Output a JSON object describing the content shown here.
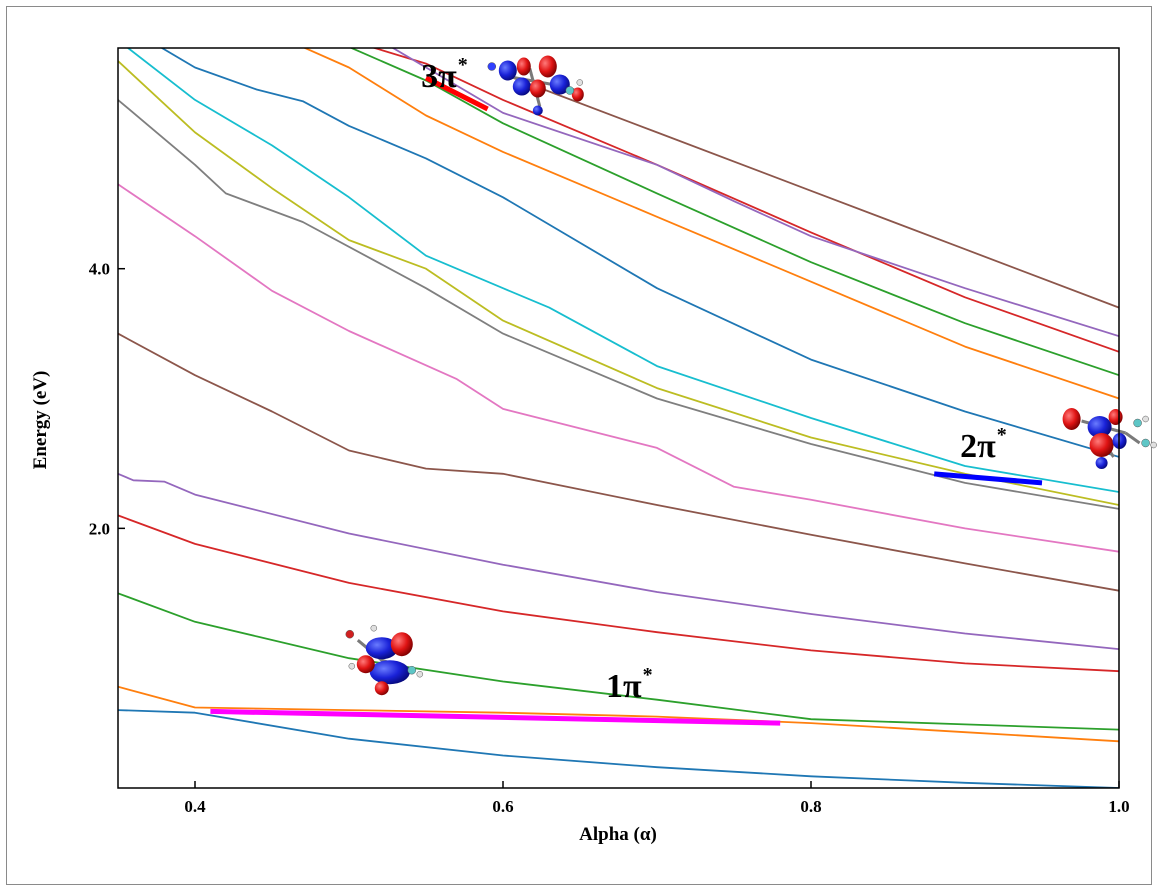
{
  "chart_data": {
    "type": "line",
    "xlabel": "Alpha (α)",
    "ylabel": "Energy (eV)",
    "xlim": [
      0.35,
      1.0
    ],
    "ylim": [
      0.0,
      5.7
    ],
    "x_ticks": [
      0.4,
      0.6,
      0.8,
      1.0
    ],
    "y_ticks": [
      2.0,
      4.0
    ],
    "x_tick_labels": [
      "0.4",
      "0.6",
      "0.8",
      "1.0"
    ],
    "y_tick_labels": [
      "2.0",
      "4.0"
    ],
    "grid": false,
    "legend": "none",
    "series": [
      {
        "color": "#1f77b4",
        "points": [
          [
            0.35,
            0.6
          ],
          [
            0.4,
            0.58
          ],
          [
            0.5,
            0.38
          ],
          [
            0.6,
            0.25
          ],
          [
            0.7,
            0.16
          ],
          [
            0.8,
            0.09
          ],
          [
            0.9,
            0.04
          ],
          [
            1.0,
            0.0
          ]
        ]
      },
      {
        "color": "#ff7f0e",
        "points": [
          [
            0.35,
            0.78
          ],
          [
            0.4,
            0.62
          ],
          [
            0.5,
            0.6
          ],
          [
            0.6,
            0.58
          ],
          [
            0.7,
            0.55
          ],
          [
            0.8,
            0.5
          ],
          [
            0.9,
            0.43
          ],
          [
            1.0,
            0.36
          ]
        ]
      },
      {
        "color": "#2ca02c",
        "points": [
          [
            0.35,
            1.5
          ],
          [
            0.4,
            1.28
          ],
          [
            0.5,
            1.0
          ],
          [
            0.6,
            0.82
          ],
          [
            0.7,
            0.68
          ],
          [
            0.8,
            0.53
          ],
          [
            0.9,
            0.49
          ],
          [
            1.0,
            0.45
          ]
        ]
      },
      {
        "color": "#d62728",
        "points": [
          [
            0.35,
            2.1
          ],
          [
            0.4,
            1.88
          ],
          [
            0.5,
            1.58
          ],
          [
            0.6,
            1.36
          ],
          [
            0.7,
            1.2
          ],
          [
            0.8,
            1.06
          ],
          [
            0.9,
            0.96
          ],
          [
            1.0,
            0.9
          ]
        ]
      },
      {
        "color": "#9467bd",
        "points": [
          [
            0.35,
            2.42
          ],
          [
            0.36,
            2.37
          ],
          [
            0.38,
            2.36
          ],
          [
            0.4,
            2.26
          ],
          [
            0.5,
            1.96
          ],
          [
            0.6,
            1.72
          ],
          [
            0.7,
            1.51
          ],
          [
            0.8,
            1.34
          ],
          [
            0.9,
            1.19
          ],
          [
            1.0,
            1.07
          ]
        ]
      },
      {
        "color": "#8c564b",
        "points": [
          [
            0.35,
            3.5
          ],
          [
            0.4,
            3.18
          ],
          [
            0.45,
            2.9
          ],
          [
            0.5,
            2.6
          ],
          [
            0.55,
            2.46
          ],
          [
            0.6,
            2.42
          ],
          [
            0.7,
            2.18
          ],
          [
            0.8,
            1.95
          ],
          [
            0.9,
            1.73
          ],
          [
            1.0,
            1.52
          ]
        ]
      },
      {
        "color": "#e377c2",
        "points": [
          [
            0.35,
            4.65
          ],
          [
            0.4,
            4.25
          ],
          [
            0.45,
            3.83
          ],
          [
            0.5,
            3.52
          ],
          [
            0.57,
            3.15
          ],
          [
            0.6,
            2.92
          ],
          [
            0.7,
            2.62
          ],
          [
            0.75,
            2.32
          ],
          [
            0.8,
            2.22
          ],
          [
            0.9,
            2.0
          ],
          [
            1.0,
            1.82
          ]
        ]
      },
      {
        "color": "#7f7f7f",
        "points": [
          [
            0.35,
            5.3
          ],
          [
            0.4,
            4.8
          ],
          [
            0.42,
            4.58
          ],
          [
            0.47,
            4.36
          ],
          [
            0.55,
            3.85
          ],
          [
            0.6,
            3.5
          ],
          [
            0.7,
            3.0
          ],
          [
            0.8,
            2.65
          ],
          [
            0.9,
            2.35
          ],
          [
            1.0,
            2.15
          ]
        ]
      },
      {
        "color": "#bcbd22",
        "points": [
          [
            0.35,
            5.6
          ],
          [
            0.4,
            5.05
          ],
          [
            0.45,
            4.62
          ],
          [
            0.5,
            4.22
          ],
          [
            0.55,
            4.0
          ],
          [
            0.6,
            3.6
          ],
          [
            0.7,
            3.08
          ],
          [
            0.8,
            2.7
          ],
          [
            0.9,
            2.42
          ],
          [
            1.0,
            2.18
          ]
        ]
      },
      {
        "color": "#17becf",
        "points": [
          [
            0.35,
            5.76
          ],
          [
            0.4,
            5.3
          ],
          [
            0.45,
            4.95
          ],
          [
            0.5,
            4.55
          ],
          [
            0.55,
            4.1
          ],
          [
            0.6,
            3.85
          ],
          [
            0.63,
            3.7
          ],
          [
            0.7,
            3.25
          ],
          [
            0.8,
            2.85
          ],
          [
            0.9,
            2.48
          ],
          [
            1.0,
            2.28
          ]
        ]
      },
      {
        "color": "#1f77b4",
        "points": [
          [
            0.37,
            5.76
          ],
          [
            0.4,
            5.55
          ],
          [
            0.44,
            5.38
          ],
          [
            0.47,
            5.29
          ],
          [
            0.5,
            5.1
          ],
          [
            0.55,
            4.85
          ],
          [
            0.6,
            4.55
          ],
          [
            0.7,
            3.85
          ],
          [
            0.8,
            3.3
          ],
          [
            0.9,
            2.9
          ],
          [
            1.0,
            2.55
          ]
        ]
      },
      {
        "color": "#ff7f0e",
        "points": [
          [
            0.46,
            5.76
          ],
          [
            0.5,
            5.55
          ],
          [
            0.55,
            5.18
          ],
          [
            0.6,
            4.9
          ],
          [
            0.7,
            4.4
          ],
          [
            0.8,
            3.9
          ],
          [
            0.9,
            3.4
          ],
          [
            1.0,
            3.0
          ]
        ]
      },
      {
        "color": "#2ca02c",
        "points": [
          [
            0.49,
            5.76
          ],
          [
            0.55,
            5.45
          ],
          [
            0.6,
            5.12
          ],
          [
            0.7,
            4.58
          ],
          [
            0.8,
            4.05
          ],
          [
            0.9,
            3.58
          ],
          [
            1.0,
            3.18
          ]
        ]
      },
      {
        "color": "#d62728",
        "points": [
          [
            0.5,
            5.76
          ],
          [
            0.55,
            5.58
          ],
          [
            0.6,
            5.3
          ],
          [
            0.7,
            4.8
          ],
          [
            0.8,
            4.28
          ],
          [
            0.9,
            3.78
          ],
          [
            1.0,
            3.36
          ]
        ]
      },
      {
        "color": "#9467bd",
        "points": [
          [
            0.52,
            5.76
          ],
          [
            0.6,
            5.2
          ],
          [
            0.7,
            4.8
          ],
          [
            0.75,
            4.52
          ],
          [
            0.8,
            4.25
          ],
          [
            0.9,
            3.85
          ],
          [
            1.0,
            3.48
          ]
        ]
      },
      {
        "color": "#8c564b",
        "points": [
          [
            0.6,
            5.5
          ],
          [
            0.7,
            5.05
          ],
          [
            0.8,
            4.6
          ],
          [
            0.9,
            4.15
          ],
          [
            1.0,
            3.7
          ]
        ]
      }
    ],
    "annotations": [
      {
        "label": "1π",
        "sup": "*",
        "color": "#ff00ff",
        "segment": [
          [
            0.41,
            0.59
          ],
          [
            0.78,
            0.5
          ]
        ],
        "label_at": [
          0.69,
          0.7
        ]
      },
      {
        "label": "2π",
        "sup": "*",
        "color": "#0000ff",
        "segment": [
          [
            0.88,
            2.42
          ],
          [
            0.95,
            2.35
          ]
        ],
        "label_at": [
          0.92,
          2.55
        ]
      },
      {
        "label": "3π",
        "sup": "*",
        "color": "#ff0000",
        "segment": [
          [
            0.55,
            5.47
          ],
          [
            0.59,
            5.23
          ]
        ],
        "label_at": [
          0.57,
          5.4
        ]
      }
    ],
    "orbital_icons": [
      {
        "name": "orbital-icon-1pi",
        "at": [
          0.52,
          1.0
        ]
      },
      {
        "name": "orbital-icon-2pi",
        "at": [
          0.99,
          2.75
        ]
      },
      {
        "name": "orbital-icon-3pi",
        "at": [
          0.62,
          5.45
        ]
      }
    ]
  }
}
